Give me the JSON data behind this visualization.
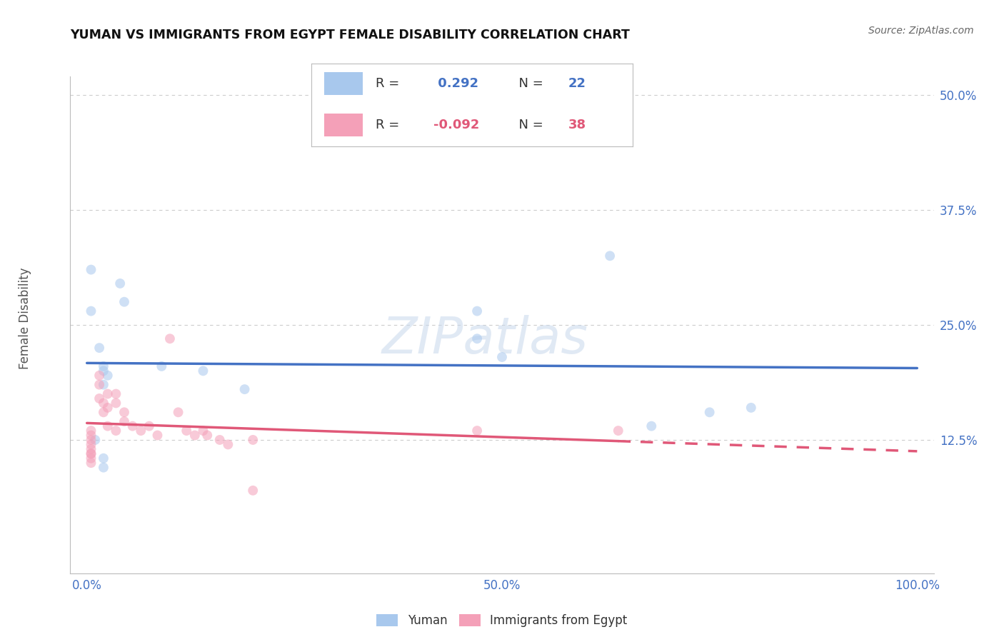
{
  "title": "YUMAN VS IMMIGRANTS FROM EGYPT FEMALE DISABILITY CORRELATION CHART",
  "source": "Source: ZipAtlas.com",
  "ylabel": "Female Disability",
  "background_color": "#ffffff",
  "grid_color": "#cccccc",
  "yuman_color": "#a8c8ed",
  "egypt_color": "#f4a0b8",
  "yuman_line_color": "#4472c4",
  "egypt_line_color": "#e05878",
  "yuman_R": 0.292,
  "yuman_N": 22,
  "egypt_R": -0.092,
  "egypt_N": 38,
  "xlim": [
    -0.02,
    1.02
  ],
  "ylim": [
    -0.02,
    0.52
  ],
  "xtick_positions": [
    0.0,
    0.5,
    1.0
  ],
  "xticklabels": [
    "0.0%",
    "50.0%",
    "100.0%"
  ],
  "ytick_positions": [
    0.125,
    0.25,
    0.375,
    0.5
  ],
  "yticklabels": [
    "12.5%",
    "25.0%",
    "37.5%",
    "50.0%"
  ],
  "yuman_x": [
    0.005,
    0.04,
    0.045,
    0.005,
    0.015,
    0.02,
    0.02,
    0.025,
    0.02,
    0.47,
    0.5,
    0.63,
    0.47,
    0.75,
    0.8,
    0.68,
    0.01,
    0.02,
    0.14,
    0.09,
    0.02,
    0.19
  ],
  "yuman_y": [
    0.31,
    0.295,
    0.275,
    0.265,
    0.225,
    0.205,
    0.2,
    0.195,
    0.185,
    0.265,
    0.215,
    0.325,
    0.235,
    0.155,
    0.16,
    0.14,
    0.125,
    0.105,
    0.2,
    0.205,
    0.095,
    0.18
  ],
  "egypt_x": [
    0.005,
    0.005,
    0.005,
    0.005,
    0.005,
    0.005,
    0.005,
    0.005,
    0.005,
    0.015,
    0.015,
    0.015,
    0.02,
    0.02,
    0.025,
    0.025,
    0.025,
    0.035,
    0.035,
    0.035,
    0.045,
    0.045,
    0.055,
    0.065,
    0.075,
    0.085,
    0.1,
    0.11,
    0.12,
    0.13,
    0.14,
    0.145,
    0.16,
    0.17,
    0.2,
    0.47,
    0.64,
    0.2
  ],
  "egypt_y": [
    0.135,
    0.13,
    0.125,
    0.12,
    0.115,
    0.11,
    0.11,
    0.105,
    0.1,
    0.195,
    0.185,
    0.17,
    0.165,
    0.155,
    0.175,
    0.16,
    0.14,
    0.175,
    0.165,
    0.135,
    0.155,
    0.145,
    0.14,
    0.135,
    0.14,
    0.13,
    0.235,
    0.155,
    0.135,
    0.13,
    0.135,
    0.13,
    0.125,
    0.12,
    0.07,
    0.135,
    0.135,
    0.125
  ],
  "marker_size": 100,
  "marker_alpha": 0.55,
  "line_width": 2.5,
  "watermark": "ZIPatlas"
}
